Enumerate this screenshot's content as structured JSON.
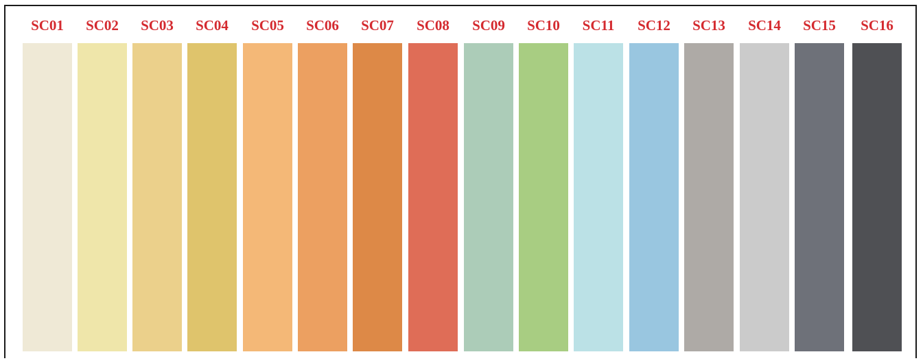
{
  "swatches": [
    {
      "code": "SC01",
      "color": "#efe9d6"
    },
    {
      "code": "SC02",
      "color": "#efe6aa"
    },
    {
      "code": "SC03",
      "color": "#ebd08b"
    },
    {
      "code": "SC04",
      "color": "#dfc46c"
    },
    {
      "code": "SC05",
      "color": "#f4b877"
    },
    {
      "code": "SC06",
      "color": "#eca061"
    },
    {
      "code": "SC07",
      "color": "#dd8947"
    },
    {
      "code": "SC08",
      "color": "#df6d57"
    },
    {
      "code": "SC09",
      "color": "#acccb8"
    },
    {
      "code": "SC10",
      "color": "#a8cd82"
    },
    {
      "code": "SC11",
      "color": "#bbe1e6"
    },
    {
      "code": "SC12",
      "color": "#99c6e0"
    },
    {
      "code": "SC13",
      "color": "#aeaaa6"
    },
    {
      "code": "SC14",
      "color": "#cbcbcb"
    },
    {
      "code": "SC15",
      "color": "#6e7179"
    },
    {
      "code": "SC16",
      "color": "#4f5054"
    }
  ]
}
